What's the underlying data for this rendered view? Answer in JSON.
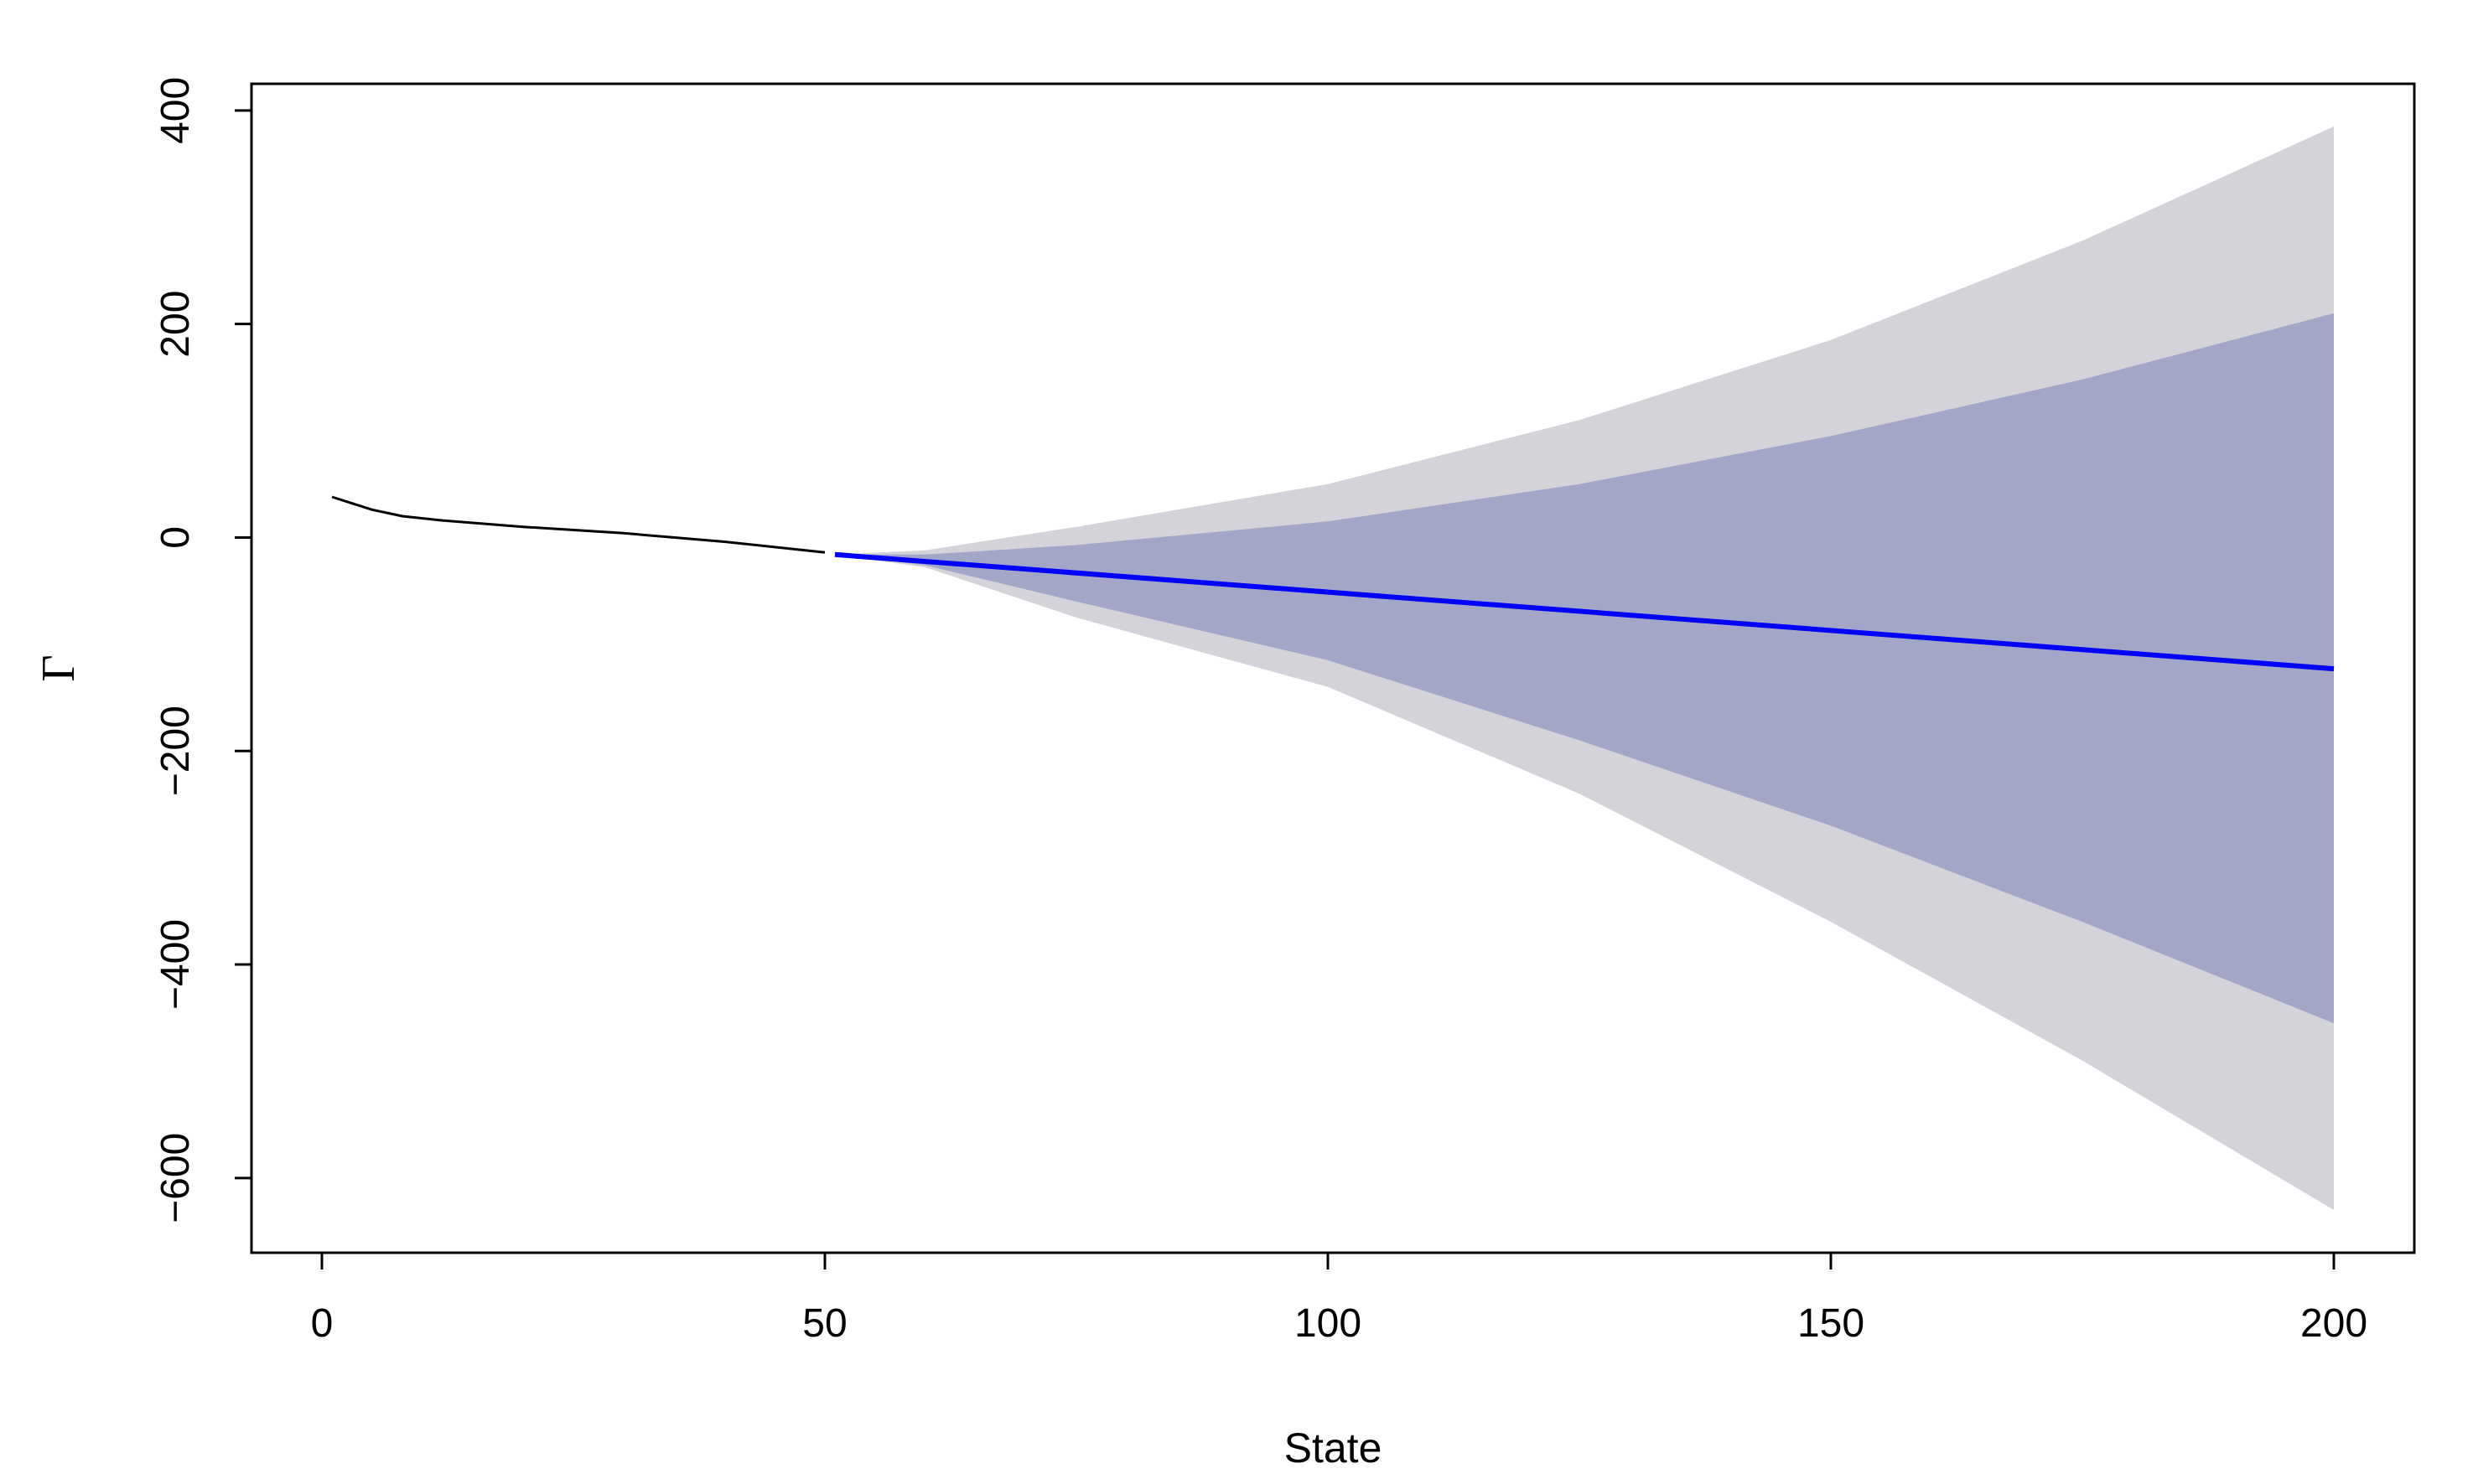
{
  "chart_data": {
    "type": "line",
    "title": "",
    "xlabel": "State",
    "ylabel": "Γ",
    "xlim": [
      -7,
      208
    ],
    "ylim": [
      -670,
      425
    ],
    "x_ticks": [
      0,
      50,
      100,
      150,
      200
    ],
    "y_ticks": [
      -600,
      -400,
      -200,
      0,
      200,
      400
    ],
    "x_tick_labels": [
      "0",
      "50",
      "100",
      "150",
      "200"
    ],
    "y_tick_labels": [
      "−600",
      "−400",
      "−200",
      "0",
      "200",
      "400"
    ],
    "grid": false,
    "legend": "none",
    "colors": {
      "observed": "#000000",
      "forecast": "#0000ff",
      "outer_band": "#d3d3d9",
      "inner_band": "#a3a6c6",
      "frame": "#000000"
    },
    "series": [
      {
        "role": "observed",
        "points": [
          [
            1,
            38
          ],
          [
            3,
            32
          ],
          [
            5,
            26
          ],
          [
            8,
            20
          ],
          [
            12,
            16
          ],
          [
            20,
            10
          ],
          [
            30,
            4
          ],
          [
            40,
            -4
          ],
          [
            50,
            -14
          ]
        ]
      },
      {
        "role": "forecast-mean",
        "points": [
          [
            51,
            -16
          ],
          [
            200,
            -123
          ]
        ]
      }
    ],
    "bands": [
      {
        "role": "outer-interval",
        "upper": [
          [
            51,
            -16
          ],
          [
            60,
            -12
          ],
          [
            75,
            10
          ],
          [
            100,
            50
          ],
          [
            125,
            110
          ],
          [
            150,
            185
          ],
          [
            175,
            278
          ],
          [
            200,
            385
          ]
        ],
        "lower": [
          [
            51,
            -16
          ],
          [
            60,
            -28
          ],
          [
            75,
            -75
          ],
          [
            100,
            -140
          ],
          [
            125,
            -240
          ],
          [
            150,
            -360
          ],
          [
            175,
            -490
          ],
          [
            200,
            -630
          ]
        ]
      },
      {
        "role": "inner-interval",
        "upper": [
          [
            51,
            -16
          ],
          [
            60,
            -16
          ],
          [
            75,
            -7
          ],
          [
            100,
            15
          ],
          [
            125,
            50
          ],
          [
            150,
            95
          ],
          [
            175,
            148
          ],
          [
            200,
            210
          ]
        ],
        "lower": [
          [
            51,
            -16
          ],
          [
            60,
            -26
          ],
          [
            75,
            -60
          ],
          [
            100,
            -115
          ],
          [
            125,
            -190
          ],
          [
            150,
            -270
          ],
          [
            175,
            -360
          ],
          [
            200,
            -455
          ]
        ]
      }
    ]
  }
}
